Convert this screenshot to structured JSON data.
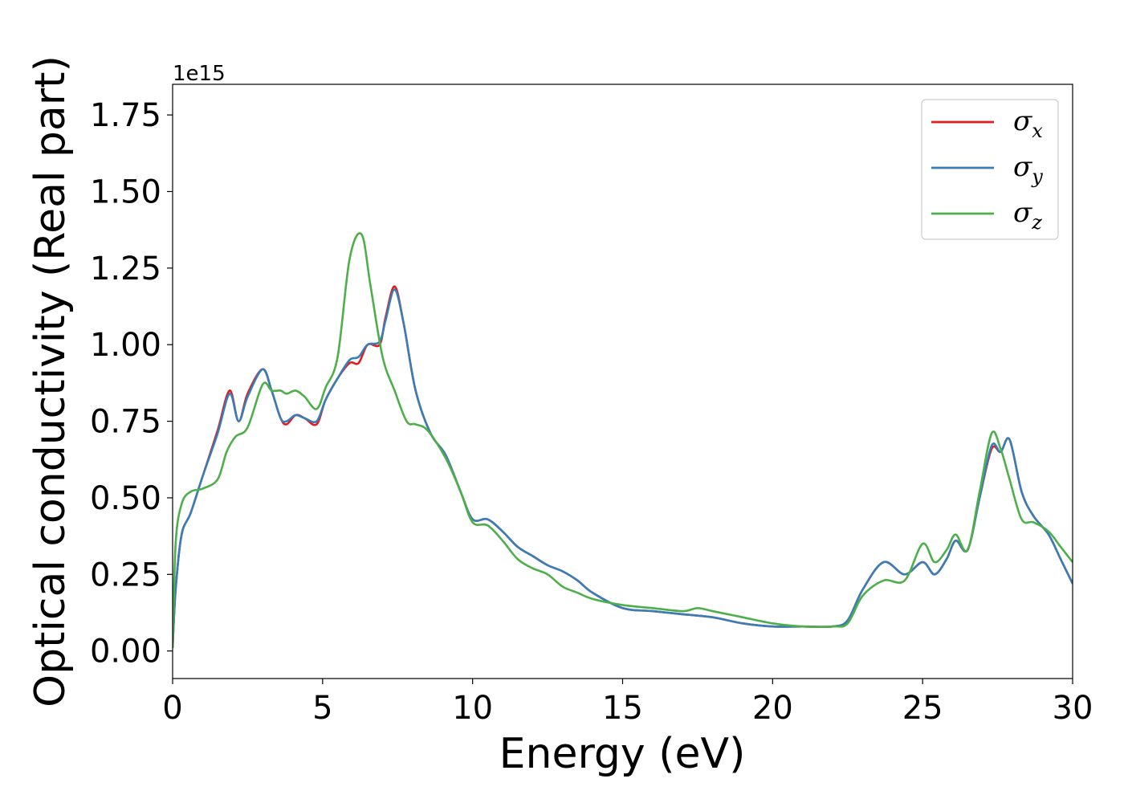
{
  "chart_data": {
    "type": "line",
    "xlabel": "Energy (eV)",
    "ylabel": "Optical conductivity (Real part)",
    "y_offset_label": "1e15",
    "xlim": [
      0,
      30
    ],
    "ylim": [
      -0.09,
      1.85
    ],
    "xticks": [
      0,
      5,
      10,
      15,
      20,
      25,
      30
    ],
    "xtick_labels": [
      "0",
      "5",
      "10",
      "15",
      "20",
      "25",
      "30"
    ],
    "yticks": [
      0.0,
      0.25,
      0.5,
      0.75,
      1.0,
      1.25,
      1.5,
      1.75
    ],
    "ytick_labels": [
      "0.00",
      "0.25",
      "0.50",
      "0.75",
      "1.00",
      "1.25",
      "1.50",
      "1.75"
    ],
    "legend_position": "top-right",
    "grid": false,
    "series": [
      {
        "name": "σx",
        "symbol": "σ",
        "subscript": "x",
        "color": "#e41a1c",
        "x": [
          0,
          0.1,
          0.3,
          0.6,
          1,
          1.5,
          1.9,
          2.2,
          2.5,
          3,
          3.3,
          3.6,
          3.8,
          4.1,
          4.4,
          4.8,
          5.1,
          5.5,
          5.9,
          6.2,
          6.5,
          6.9,
          7.1,
          7.4,
          7.7,
          8.1,
          8.6,
          9.1,
          9.6,
          10,
          10.5,
          11,
          11.5,
          12,
          12.5,
          13,
          13.5,
          14,
          15,
          16,
          17,
          18,
          19,
          20,
          21,
          22,
          22.5,
          23,
          23.7,
          24.4,
          25,
          25.4,
          25.8,
          26.1,
          26.5,
          26.9,
          27.3,
          27.6,
          27.9,
          28.3,
          28.7,
          29.2,
          29.6,
          30
        ],
        "y": [
          0.01,
          0.2,
          0.38,
          0.45,
          0.57,
          0.72,
          0.85,
          0.75,
          0.84,
          0.92,
          0.85,
          0.76,
          0.74,
          0.77,
          0.76,
          0.74,
          0.82,
          0.89,
          0.94,
          0.94,
          1.0,
          1.0,
          1.09,
          1.19,
          1.07,
          0.85,
          0.71,
          0.64,
          0.52,
          0.43,
          0.43,
          0.39,
          0.34,
          0.31,
          0.28,
          0.26,
          0.23,
          0.19,
          0.14,
          0.13,
          0.12,
          0.11,
          0.09,
          0.08,
          0.08,
          0.08,
          0.1,
          0.2,
          0.29,
          0.25,
          0.29,
          0.25,
          0.3,
          0.36,
          0.33,
          0.5,
          0.66,
          0.65,
          0.69,
          0.52,
          0.44,
          0.38,
          0.3,
          0.22
        ]
      },
      {
        "name": "σy",
        "symbol": "σ",
        "subscript": "y",
        "color": "#377eb8",
        "x": [
          0,
          0.1,
          0.3,
          0.6,
          1,
          1.5,
          1.9,
          2.2,
          2.5,
          3,
          3.3,
          3.6,
          3.8,
          4.1,
          4.4,
          4.8,
          5.1,
          5.5,
          5.9,
          6.2,
          6.5,
          6.9,
          7.1,
          7.4,
          7.7,
          8.1,
          8.6,
          9.1,
          9.6,
          10,
          10.5,
          11,
          11.5,
          12,
          12.5,
          13,
          13.5,
          14,
          15,
          16,
          17,
          18,
          19,
          20,
          21,
          22,
          22.5,
          23,
          23.7,
          24.4,
          25,
          25.4,
          25.8,
          26.1,
          26.5,
          26.9,
          27.3,
          27.6,
          27.9,
          28.3,
          28.7,
          29.2,
          29.6,
          30
        ],
        "y": [
          0.01,
          0.2,
          0.38,
          0.45,
          0.57,
          0.71,
          0.84,
          0.75,
          0.83,
          0.92,
          0.85,
          0.76,
          0.75,
          0.77,
          0.76,
          0.75,
          0.82,
          0.89,
          0.95,
          0.96,
          1.0,
          1.01,
          1.08,
          1.18,
          1.07,
          0.85,
          0.71,
          0.64,
          0.52,
          0.43,
          0.43,
          0.39,
          0.34,
          0.31,
          0.28,
          0.26,
          0.23,
          0.19,
          0.14,
          0.13,
          0.12,
          0.11,
          0.09,
          0.08,
          0.08,
          0.08,
          0.1,
          0.2,
          0.29,
          0.25,
          0.29,
          0.25,
          0.3,
          0.36,
          0.33,
          0.5,
          0.67,
          0.65,
          0.69,
          0.52,
          0.44,
          0.38,
          0.3,
          0.22
        ]
      },
      {
        "name": "σz",
        "symbol": "σ",
        "subscript": "z",
        "color": "#4daf4a",
        "x": [
          0,
          0.1,
          0.3,
          0.6,
          1,
          1.5,
          1.8,
          2.1,
          2.5,
          3,
          3.3,
          3.6,
          3.8,
          4.1,
          4.4,
          4.8,
          5.1,
          5.5,
          5.9,
          6.3,
          6.6,
          7,
          7.4,
          7.8,
          8.1,
          8.5,
          9.1,
          9.6,
          10,
          10.5,
          11,
          11.5,
          12,
          12.5,
          13,
          13.5,
          14,
          15,
          16,
          17,
          17.5,
          18,
          19,
          20,
          21,
          22,
          22.5,
          23,
          23.7,
          24.4,
          25,
          25.4,
          25.8,
          26.1,
          26.5,
          26.9,
          27.3,
          27.6,
          27.9,
          28.3,
          28.7,
          29.2,
          29.6,
          30
        ],
        "y": [
          0.01,
          0.35,
          0.48,
          0.52,
          0.53,
          0.56,
          0.65,
          0.7,
          0.73,
          0.87,
          0.85,
          0.85,
          0.84,
          0.85,
          0.83,
          0.79,
          0.86,
          0.96,
          1.28,
          1.36,
          1.19,
          0.96,
          0.85,
          0.75,
          0.74,
          0.72,
          0.63,
          0.52,
          0.42,
          0.41,
          0.36,
          0.3,
          0.27,
          0.25,
          0.21,
          0.19,
          0.17,
          0.15,
          0.14,
          0.13,
          0.14,
          0.13,
          0.11,
          0.09,
          0.08,
          0.08,
          0.09,
          0.18,
          0.23,
          0.23,
          0.35,
          0.29,
          0.33,
          0.38,
          0.33,
          0.52,
          0.71,
          0.66,
          0.56,
          0.43,
          0.42,
          0.39,
          0.34,
          0.29
        ]
      }
    ]
  }
}
